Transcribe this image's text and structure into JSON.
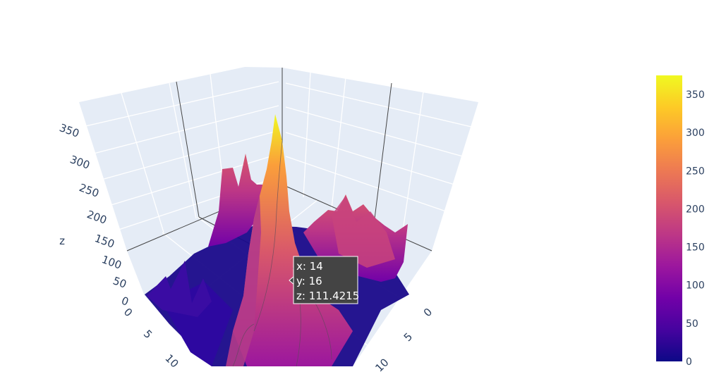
{
  "chart_data": {
    "type": "surface",
    "title": "",
    "axes": {
      "x": {
        "title": "",
        "tick_labels": [
          "0",
          "5",
          "10"
        ]
      },
      "y": {
        "title": "",
        "tick_labels": [
          "0",
          "5",
          "10"
        ]
      },
      "z": {
        "title": "z",
        "tick_labels": [
          "0",
          "50",
          "100",
          "150",
          "200",
          "250",
          "300",
          "350"
        ],
        "range": [
          0,
          375
        ]
      }
    },
    "colorscale": {
      "name": "plasma",
      "range": [
        0,
        375
      ],
      "tick_labels": [
        "0",
        "50",
        "100",
        "150",
        "200",
        "250",
        "300",
        "350"
      ],
      "tick_values": [
        0,
        50,
        100,
        150,
        200,
        250,
        300,
        350
      ]
    },
    "hover": {
      "x_line": "x: 14",
      "y_line": "y: 16",
      "z_line": "z: 111.4215",
      "point": {
        "x": 14,
        "y": 16,
        "z": 111.4215
      }
    },
    "grid": true,
    "peak": {
      "x": 8,
      "y": 12,
      "z": 372
    }
  }
}
